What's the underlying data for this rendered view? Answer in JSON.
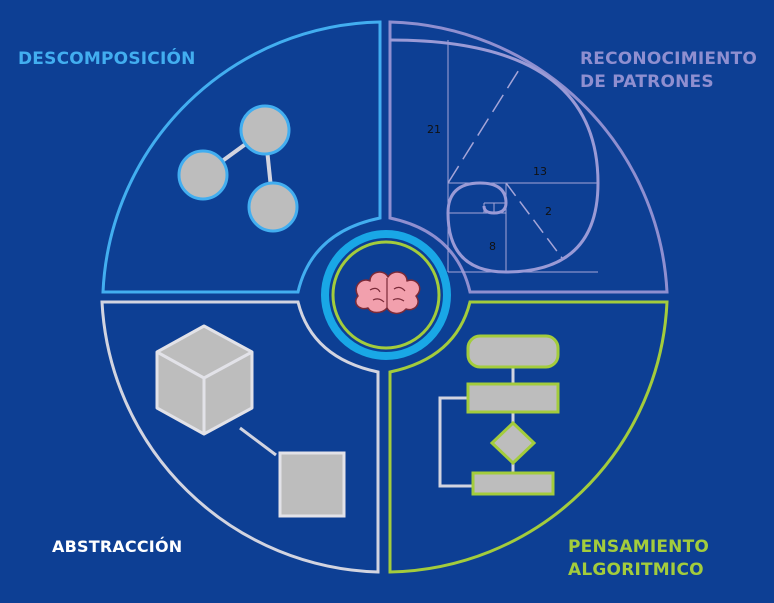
{
  "labels": {
    "decomposition": "DESCOMPOSICIÓN",
    "pattern_line1": "RECONOCIMIENTO",
    "pattern_line2": "DE PATRONES",
    "abstraction": "ABSTRACCIÓN",
    "algorithmic_line1": "PENSAMIENTO",
    "algorithmic_line2": "ALGORITMICO"
  },
  "fibonacci": {
    "n21": "21",
    "n13": "13",
    "n2": "2",
    "n8": "8"
  },
  "colors": {
    "background": "#0d3f94",
    "decomposition": "#42aef0",
    "pattern": "#8f8fd0",
    "abstraction": "#d2d4e0",
    "algorithmic": "#a3cc3c",
    "center_ring": "#19a7e6",
    "brain": "#f2a0ad",
    "shape_fill": "#bdbdbd"
  },
  "icons": {
    "center": "brain-icon"
  }
}
